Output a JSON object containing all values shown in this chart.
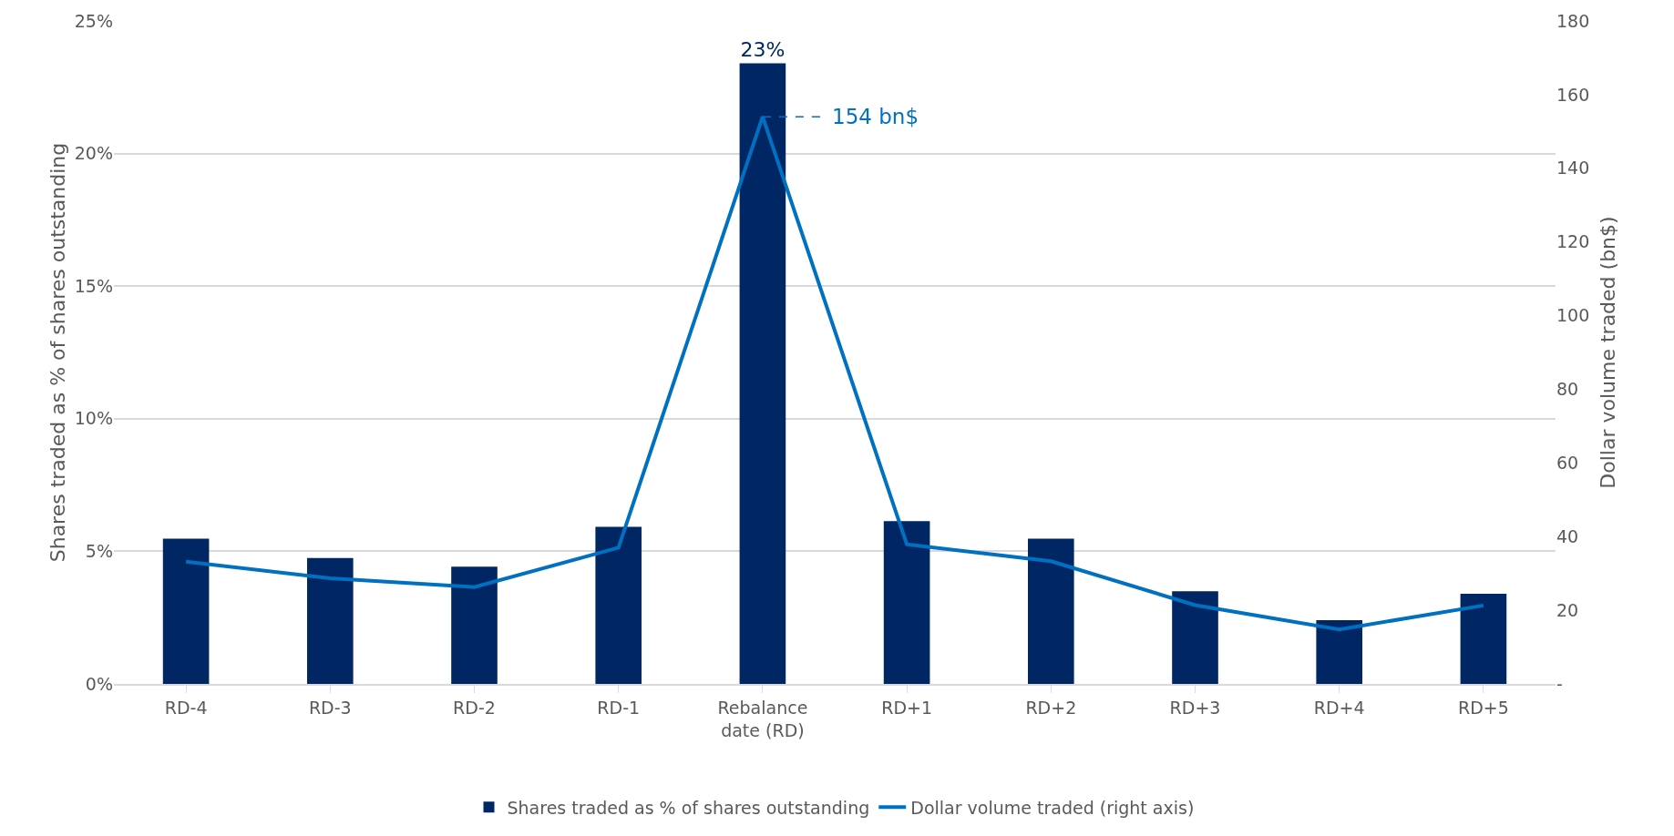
{
  "chart_data": {
    "type": "bar",
    "ylabel": "Shares traded as % of shares outstanding",
    "y2label": "Dollar volume traded (bn$)",
    "categories": [
      "RD-4",
      "RD-3",
      "RD-2",
      "RD-1",
      "Rebalance date (RD)",
      "RD+1",
      "RD+2",
      "RD+3",
      "RD+4",
      "RD+5"
    ],
    "series": [
      {
        "name": "Shares traded as % of shares outstanding",
        "color": "#002664",
        "values": [
          5.48,
          4.75,
          4.42,
          5.92,
          23.4,
          6.14,
          5.48,
          3.49,
          2.4,
          3.4
        ],
        "value_labels": [
          null,
          null,
          null,
          null,
          "23%",
          null,
          null,
          null,
          null,
          null
        ]
      },
      {
        "name": "Dollar volume traded (right axis)",
        "type": "line",
        "axis": "y2",
        "color": "#0070c0",
        "values": [
          33.2,
          28.7,
          26.3,
          37.0,
          154,
          37.9,
          33.3,
          21.4,
          14.8,
          21.3
        ]
      }
    ],
    "ylim": [
      0,
      25
    ],
    "yticks": [
      {
        "value": 0,
        "label": "0%"
      },
      {
        "value": 5,
        "label": "5%"
      },
      {
        "value": 10,
        "label": "10%"
      },
      {
        "value": 15,
        "label": "15%"
      },
      {
        "value": 20,
        "label": "20%"
      },
      {
        "value": 25,
        "label": "25%"
      }
    ],
    "y2lim": [
      0,
      180
    ],
    "y2ticks": [
      {
        "value": 0,
        "label": "-"
      },
      20,
      40,
      60,
      80,
      100,
      120,
      140,
      160,
      180
    ],
    "annotations": [
      "154 bn$"
    ],
    "grid": "y",
    "legend": "bottom",
    "marker": "none",
    "line_style": "solid"
  }
}
